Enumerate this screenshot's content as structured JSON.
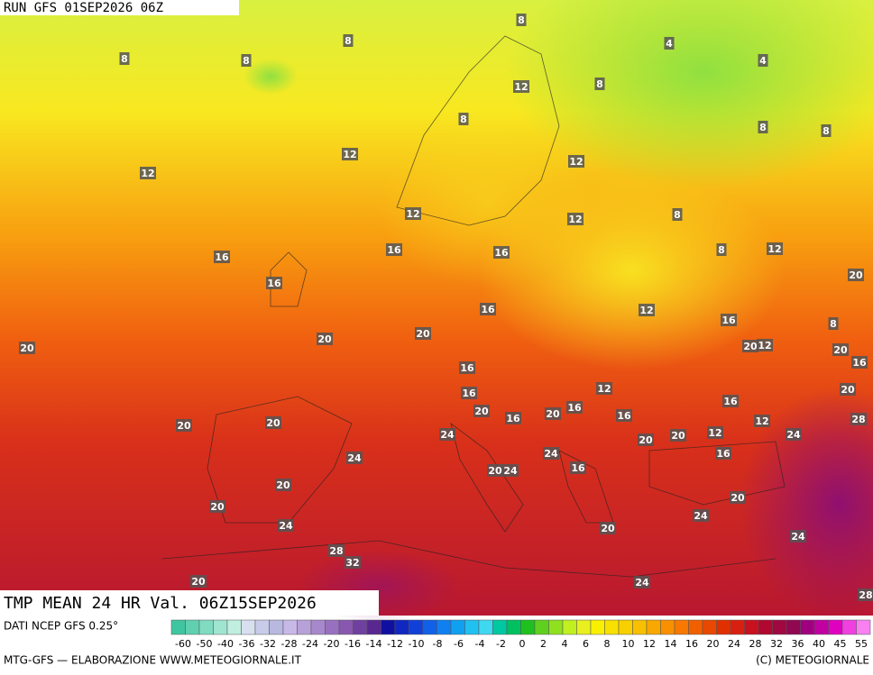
{
  "header": {
    "run": "RUN GFS 01SEP2026 06Z"
  },
  "title": "TMP MEAN 24 HR Val. 06Z15SEP2026",
  "map_labels": [
    8,
    8,
    8,
    8,
    4,
    4,
    8,
    12,
    8,
    8,
    8,
    12,
    12,
    12,
    12,
    12,
    8,
    8,
    12,
    16,
    16,
    16,
    16,
    20,
    16,
    12,
    16,
    8,
    20,
    20,
    20,
    20,
    12,
    20,
    16,
    16,
    12,
    16,
    16,
    20,
    20,
    20,
    20,
    16,
    20,
    16,
    16,
    12,
    28,
    24,
    12,
    20,
    20,
    24,
    24,
    24,
    16,
    20,
    24,
    16,
    20,
    20,
    20,
    24,
    24,
    20,
    24,
    28,
    32,
    20,
    24,
    28
  ],
  "color_scale": {
    "source": "DATI NCEP GFS 0.25°",
    "labels": [
      -60,
      -50,
      -40,
      -36,
      -32,
      -28,
      -24,
      -20,
      -16,
      -14,
      -12,
      -10,
      -8,
      -6,
      -4,
      -2,
      0,
      2,
      4,
      6,
      8,
      10,
      12,
      14,
      16,
      20,
      24,
      28,
      32,
      36,
      40,
      45,
      55
    ],
    "colors": [
      "#3fc6a0",
      "#5fd0b0",
      "#80dbc0",
      "#a0e5d0",
      "#c0efe0",
      "#d8e0f0",
      "#c8cce8",
      "#b8b8e0",
      "#c8b8e8",
      "#b8a0d8",
      "#a888cc",
      "#9870c0",
      "#8858b0",
      "#7040a0",
      "#582890",
      "#1010a0",
      "#1028c0",
      "#1040d8",
      "#1060e8",
      "#1080f0",
      "#10a0f0",
      "#20c0f0",
      "#40d8f0",
      "#00c8a0",
      "#00c060",
      "#20c020",
      "#60d020",
      "#90e020",
      "#c0f020",
      "#e8f020",
      "#f8f000",
      "#f8e000",
      "#f8d000",
      "#f8c000",
      "#f8a800",
      "#f89000",
      "#f87800",
      "#f06000",
      "#e84800",
      "#e03000",
      "#d82010",
      "#c81020",
      "#b00830",
      "#a00840",
      "#900850",
      "#a00080",
      "#c000a0",
      "#e000c0",
      "#f040e0",
      "#f880f0"
    ]
  },
  "footer": {
    "credit": "MTG-GFS — ELABORAZIONE WWW.METEOGIORNALE.IT",
    "copyright": "(C) METEOGIORNALE"
  }
}
